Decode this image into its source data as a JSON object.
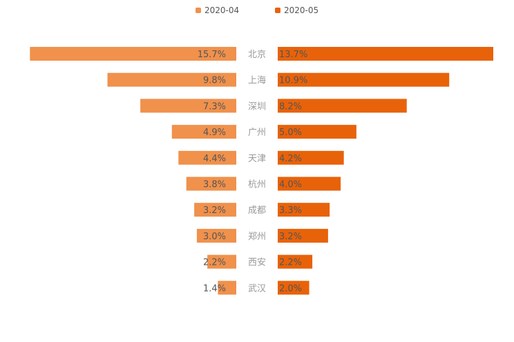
{
  "chart_data": {
    "type": "bar",
    "orientation": "horizontal-butterfly",
    "categories": [
      "北京",
      "上海",
      "深圳",
      "广州",
      "天津",
      "杭州",
      "成都",
      "郑州",
      "西安",
      "武汉"
    ],
    "series": [
      {
        "name": "2020-04",
        "color": "#F0914C",
        "values": [
          15.7,
          9.8,
          7.3,
          4.9,
          4.4,
          3.8,
          3.2,
          3.0,
          2.2,
          1.4
        ],
        "labels": [
          "15.7%",
          "9.8%",
          "7.3%",
          "4.9%",
          "4.4%",
          "3.8%",
          "3.2%",
          "3.0%",
          "2.2%",
          "1.4%"
        ],
        "xlim": [
          0,
          16.4
        ]
      },
      {
        "name": "2020-05",
        "color": "#E8620A",
        "values": [
          13.7,
          10.9,
          8.2,
          5.0,
          4.2,
          4.0,
          3.3,
          3.2,
          2.2,
          2.0
        ],
        "labels": [
          "13.7%",
          "10.9%",
          "8.2%",
          "5.0%",
          "4.2%",
          "4.0%",
          "3.3%",
          "3.2%",
          "2.2%",
          "2.0%"
        ],
        "xlim": [
          0,
          13.7
        ]
      }
    ],
    "legend_position": "top-center",
    "grid": false
  }
}
